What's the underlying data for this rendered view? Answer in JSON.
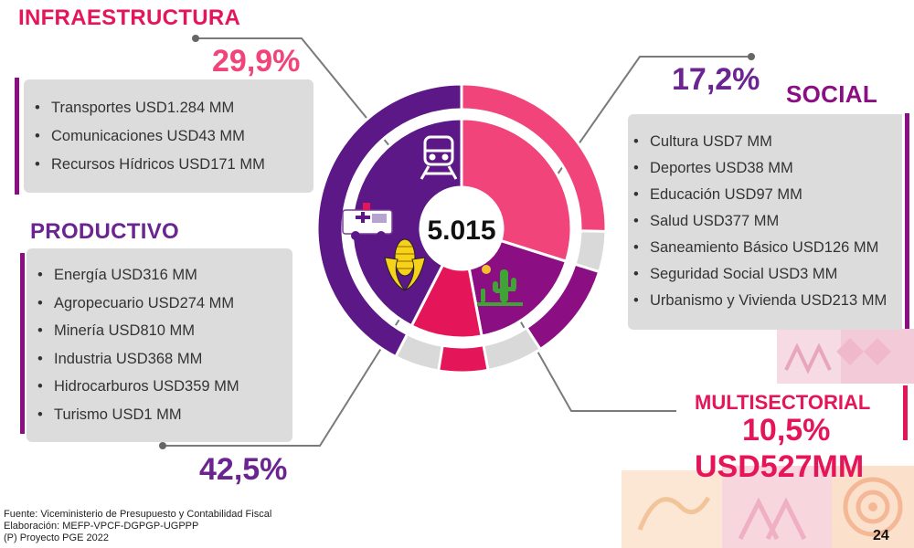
{
  "chart_data": {
    "type": "pie",
    "center_total": "5.015",
    "slices": [
      {
        "name": "INFRAESTRUCTURA",
        "pct": 29.9,
        "pct_label": "29,9%",
        "color": "#f0447a"
      },
      {
        "name": "SOCIAL",
        "pct": 17.2,
        "pct_label": "17,2%",
        "color": "#8b0f82"
      },
      {
        "name": "MULTISECTORIAL",
        "pct": 10.5,
        "pct_label": "10,5%",
        "color": "#e5155a"
      },
      {
        "name": "PRODUCTIVO",
        "pct": 42.5,
        "pct_label": "42,5%",
        "color": "#5c1886"
      }
    ]
  },
  "sectors": {
    "infraestructura": {
      "title": "INFRAESTRUCTURA",
      "pct": "29,9%",
      "items": [
        "Transportes USD1.284 MM",
        "Comunicaciones USD43 MM",
        "Recursos Hídricos USD171 MM"
      ]
    },
    "productivo": {
      "title": "PRODUCTIVO",
      "pct": "42,5%",
      "items": [
        "Energía USD316 MM",
        "Agropecuario USD274 MM",
        "Minería USD810 MM",
        "Industria USD368 MM",
        "Hidrocarburos USD359 MM",
        "Turismo USD1 MM"
      ]
    },
    "social": {
      "title": "SOCIAL",
      "pct": "17,2%",
      "items": [
        "Cultura USD7 MM",
        "Deportes USD38 MM",
        "Educación USD97 MM",
        "Salud USD377 MM",
        "Saneamiento Básico USD126 MM",
        "Seguridad Social USD3 MM",
        "Urbanismo y Vivienda USD213 MM"
      ]
    },
    "multisectorial": {
      "title": "MULTISECTORIAL",
      "pct": "10,5%",
      "amount": "USD527MM"
    }
  },
  "footer": {
    "line1": "Fuente: Viceministerio de Presupuesto y Contabilidad Fiscal",
    "line2": "Elaboración: MEFP-VPCF-DGPGP-UGPPP",
    "line3": "(P) Proyecto PGE 2022"
  },
  "page_number": "24",
  "colors": {
    "pink": "#f0447a",
    "magenta": "#8b0f82",
    "crimson": "#e5155a",
    "purple": "#5c1886",
    "ring_grey": "#d9d9d9",
    "box_grey": "#dcdcdc"
  },
  "icons": [
    "train-icon",
    "ambulance-icon",
    "corn-icon",
    "cactus-icon"
  ]
}
